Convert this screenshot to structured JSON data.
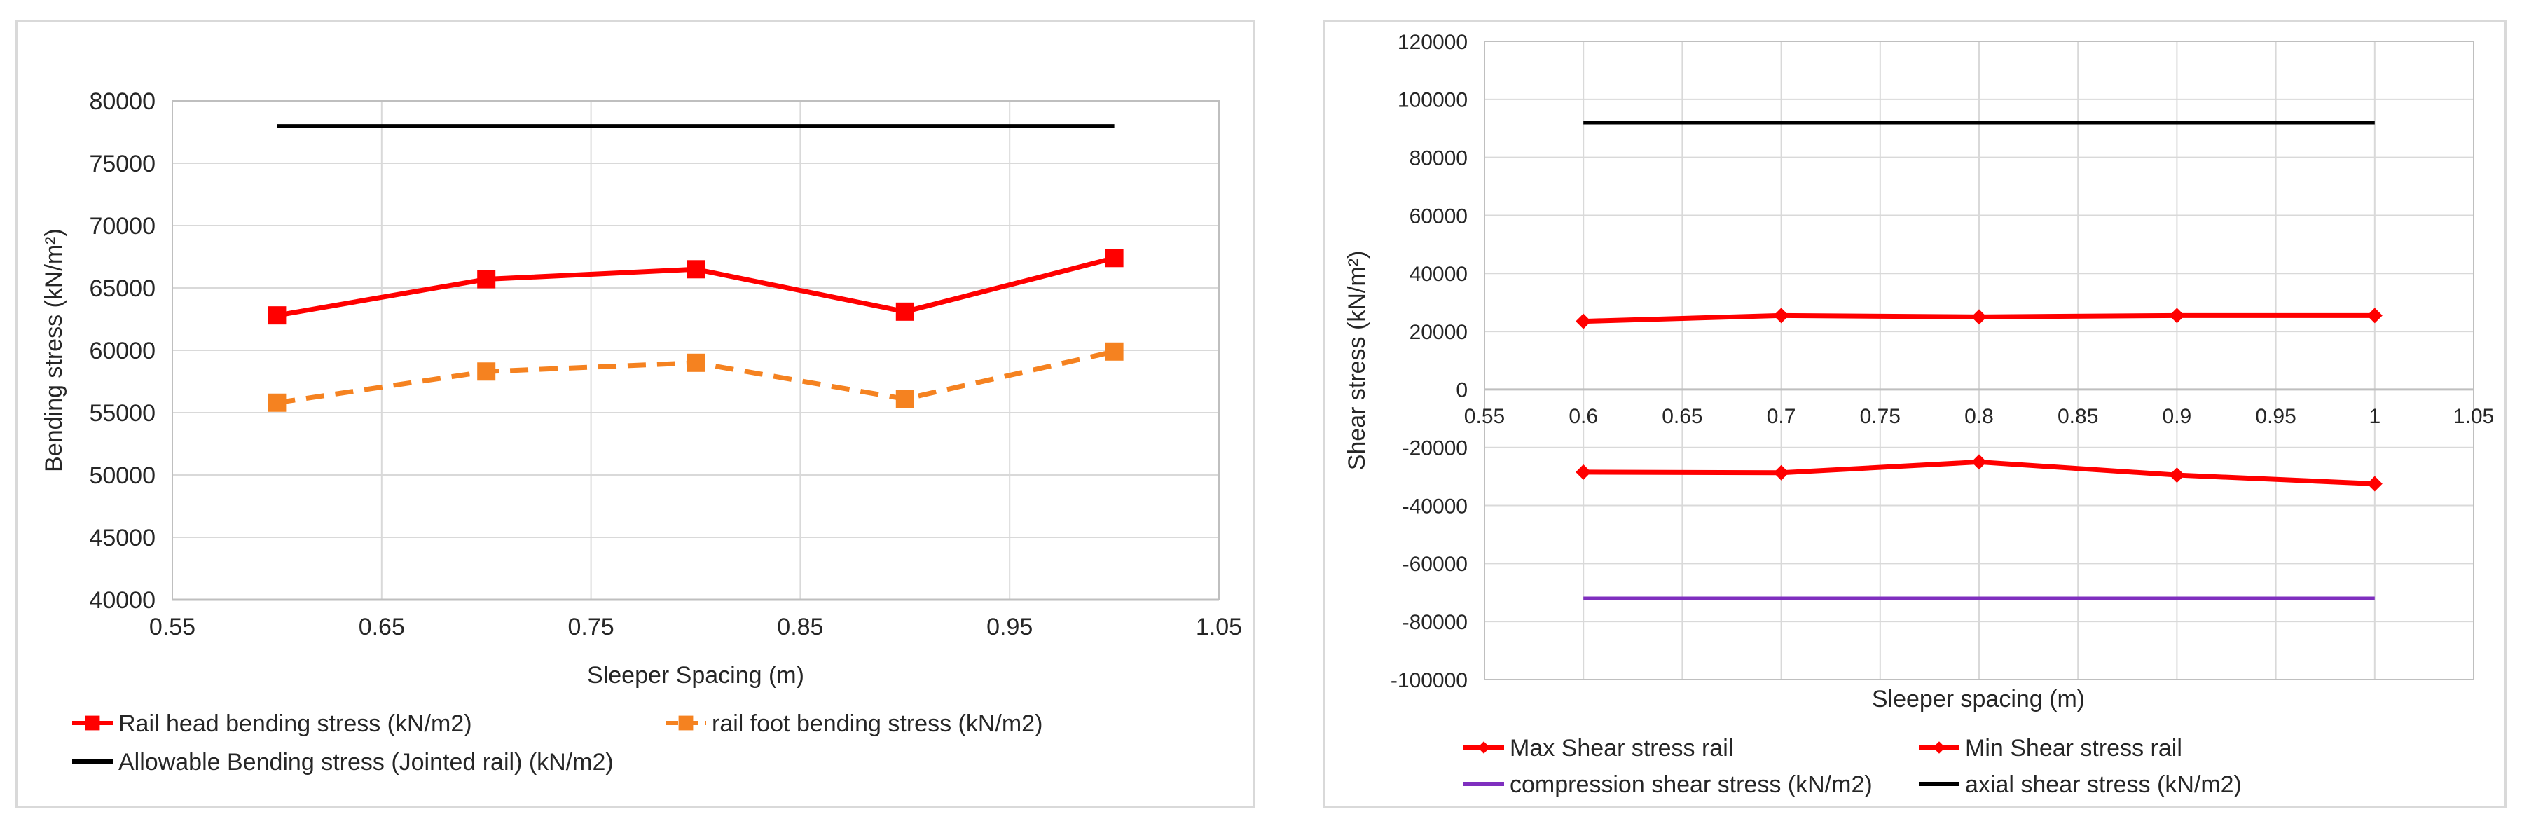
{
  "chart_data": [
    {
      "type": "line",
      "title": "",
      "xlabel": "Sleeper Spacing (m)",
      "ylabel": "Bending stress (kN/m²)",
      "xlim": [
        0.55,
        1.05
      ],
      "ylim": [
        40000,
        80000
      ],
      "xticks": [
        "0.55",
        "0.65",
        "0.75",
        "0.85",
        "0.95",
        "1.05"
      ],
      "yticks": [
        "40000",
        "45000",
        "50000",
        "55000",
        "60000",
        "65000",
        "70000",
        "75000",
        "80000"
      ],
      "grid": true,
      "legend_position": "bottom",
      "series": [
        {
          "name": "Rail head bending stress (kN/m2)",
          "color": "#ff0000",
          "style": "solid",
          "marker": "square",
          "x": [
            0.6,
            0.7,
            0.8,
            0.9,
            1.0
          ],
          "values": [
            62800,
            65700,
            66500,
            63100,
            67400
          ]
        },
        {
          "name": "rail foot bending stress (kN/m2)",
          "color": "#f58220",
          "style": "dashed",
          "marker": "square",
          "x": [
            0.6,
            0.7,
            0.8,
            0.9,
            1.0
          ],
          "values": [
            55800,
            58300,
            59000,
            56100,
            59900
          ]
        },
        {
          "name": "Allowable Bending stress (Jointed rail) (kN/m2)",
          "color": "#000000",
          "style": "solid",
          "marker": "none",
          "x": [
            0.6,
            1.0
          ],
          "values": [
            78000,
            78000
          ]
        }
      ]
    },
    {
      "type": "line",
      "title": "",
      "xlabel": "Sleeper spacing (m)",
      "ylabel": "Shear stress (kN/m²)",
      "xlim": [
        0.55,
        1.05
      ],
      "ylim": [
        -100000,
        120000
      ],
      "xticks": [
        "0.55",
        "0.6",
        "0.65",
        "0.7",
        "0.75",
        "0.8",
        "0.85",
        "0.9",
        "0.95",
        "1",
        "1.05"
      ],
      "yticks": [
        "-100000",
        "-80000",
        "-60000",
        "-40000",
        "-20000",
        "0",
        "20000",
        "40000",
        "60000",
        "80000",
        "100000",
        "120000"
      ],
      "grid": true,
      "legend_position": "bottom",
      "series": [
        {
          "name": "Max Shear stress rail",
          "color": "#ff0000",
          "style": "solid",
          "marker": "diamond",
          "x": [
            0.6,
            0.7,
            0.8,
            0.9,
            1.0
          ],
          "values": [
            23500,
            25500,
            25000,
            25500,
            25500
          ]
        },
        {
          "name": "Min Shear stress rail",
          "color": "#ff0000",
          "style": "solid",
          "marker": "diamond",
          "x": [
            0.6,
            0.7,
            0.8,
            0.9,
            1.0
          ],
          "values": [
            -28500,
            -28700,
            -25000,
            -29500,
            -32500
          ]
        },
        {
          "name": "compression shear stress  (kN/m2)",
          "color": "#7f2fbf",
          "style": "solid",
          "marker": "none",
          "x": [
            0.6,
            1.0
          ],
          "values": [
            -72000,
            -72000
          ]
        },
        {
          "name": "axial shear stress (kN/m2)",
          "color": "#000000",
          "style": "solid",
          "marker": "none",
          "x": [
            0.6,
            1.0
          ],
          "values": [
            92000,
            92000
          ]
        }
      ]
    }
  ]
}
